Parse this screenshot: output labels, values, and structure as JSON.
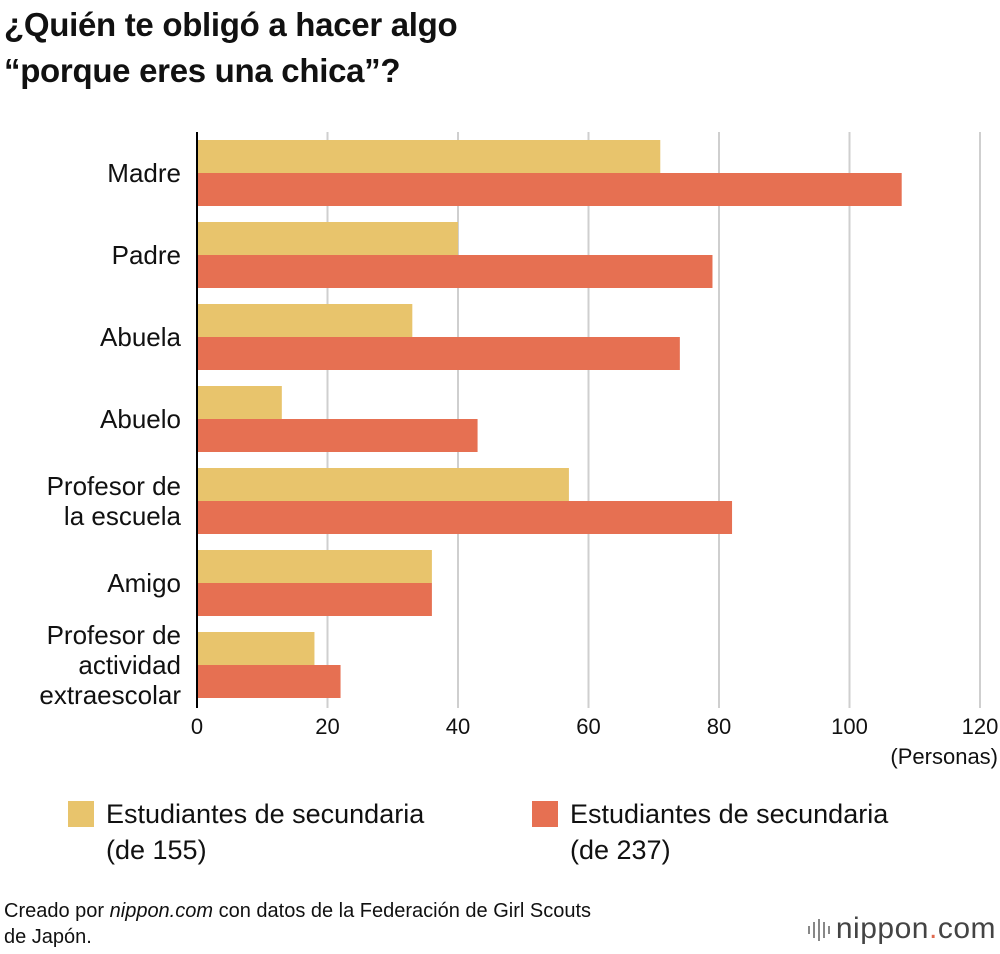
{
  "title_lines": [
    "¿Quién te obligó a hacer algo",
    "“porque eres una chica”?"
  ],
  "chart_data": {
    "type": "bar",
    "orientation": "horizontal",
    "title": "¿Quién te obligó a hacer algo “porque eres una chica”?",
    "categories": [
      [
        "Madre"
      ],
      [
        "Padre"
      ],
      [
        "Abuela"
      ],
      [
        "Abuelo"
      ],
      [
        "Profesor de",
        "la escuela"
      ],
      [
        "Amigo"
      ],
      [
        "Profesor de",
        "actividad",
        "extraescolar"
      ]
    ],
    "series": [
      {
        "name": "Estudiantes de secundaria (de 155)",
        "color": "#e8c46c",
        "values": [
          71,
          40,
          33,
          13,
          57,
          36,
          18
        ]
      },
      {
        "name": "Estudiantes de secundaria (de 237)",
        "color": "#e67052",
        "values": [
          108,
          79,
          74,
          43,
          82,
          36,
          22
        ]
      }
    ],
    "xlim": [
      0,
      120
    ],
    "xticks": [
      0,
      20,
      40,
      60,
      80,
      100,
      120
    ],
    "xlabel": "(Personas)",
    "grid": true,
    "legend_position": "bottom"
  },
  "legend": [
    {
      "line1": "Estudiantes de secundaria",
      "line2": "(de 155)"
    },
    {
      "line1": "Estudiantes de secundaria",
      "line2": "(de 237)"
    }
  ],
  "footer": {
    "prefix": "Creado por ",
    "site": "nippon.com",
    "suffix": " con datos de la Federación de Girl Scouts",
    "line2": "de Japón."
  },
  "logo": {
    "name": "nippon",
    "dot": ".",
    "tld": "com"
  }
}
